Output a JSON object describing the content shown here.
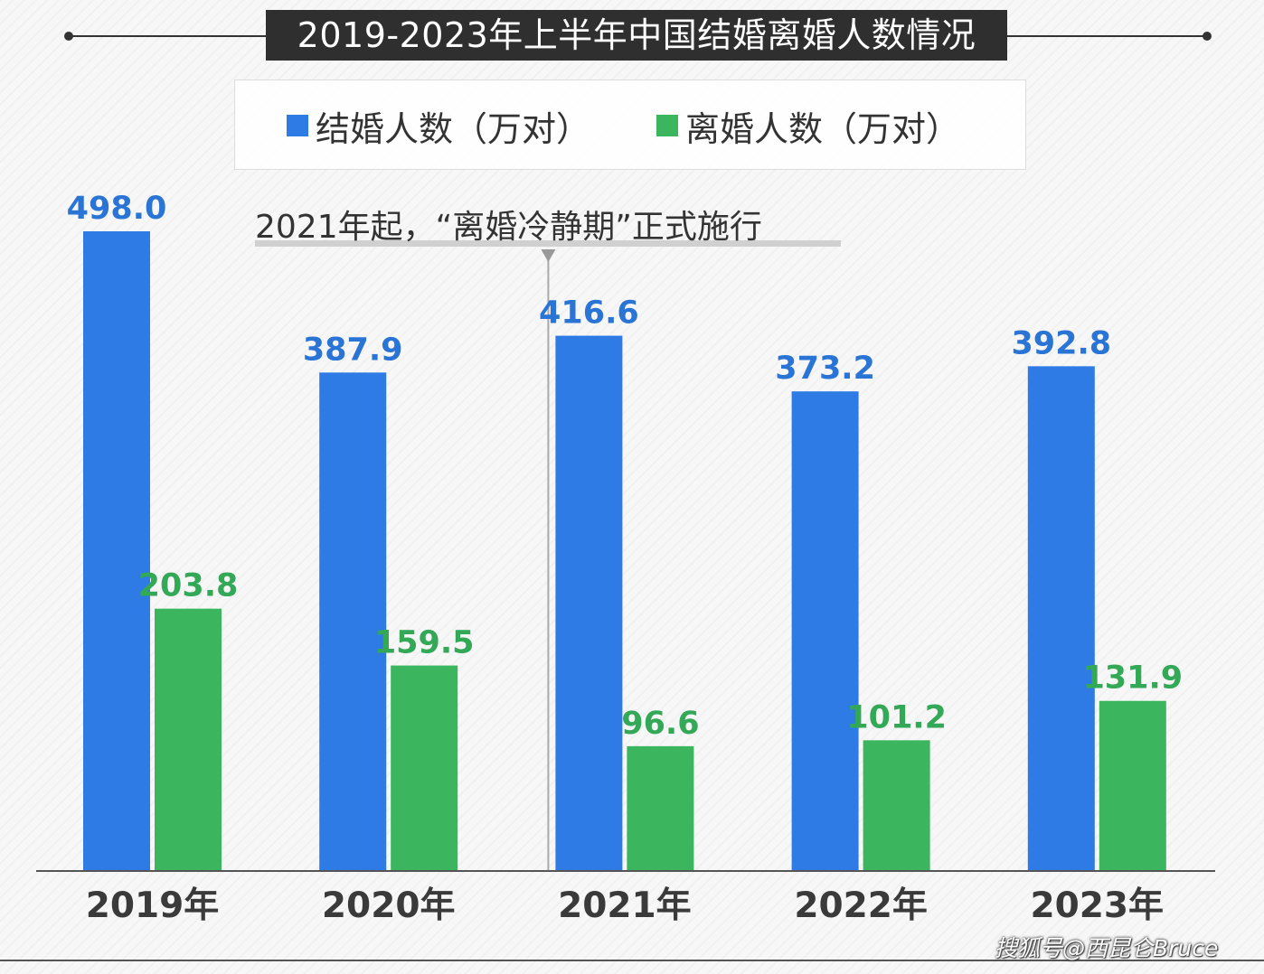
{
  "chart_data": {
    "type": "bar",
    "title": "2019-2023年上半年中国结婚离婚人数情况",
    "categories": [
      "2019年",
      "2020年",
      "2021年",
      "2022年",
      "2023年"
    ],
    "series": [
      {
        "name": "结婚人数（万对）",
        "color": "#2f7be6",
        "label_color": "#2a74d6",
        "values": [
          498.0,
          387.9,
          416.6,
          373.2,
          392.8
        ]
      },
      {
        "name": "离婚人数（万对）",
        "color": "#3cb55f",
        "label_color": "#33a857",
        "values": [
          203.8,
          159.5,
          96.6,
          101.2,
          131.9
        ]
      }
    ],
    "ylim": [
      0,
      498
    ],
    "grid": false,
    "legend": "top",
    "annotation": {
      "text": "2021年起，“离婚冷静期”正式施行",
      "at_category": "2021年"
    }
  },
  "watermark": "搜狐号@西昆仑Bruce"
}
